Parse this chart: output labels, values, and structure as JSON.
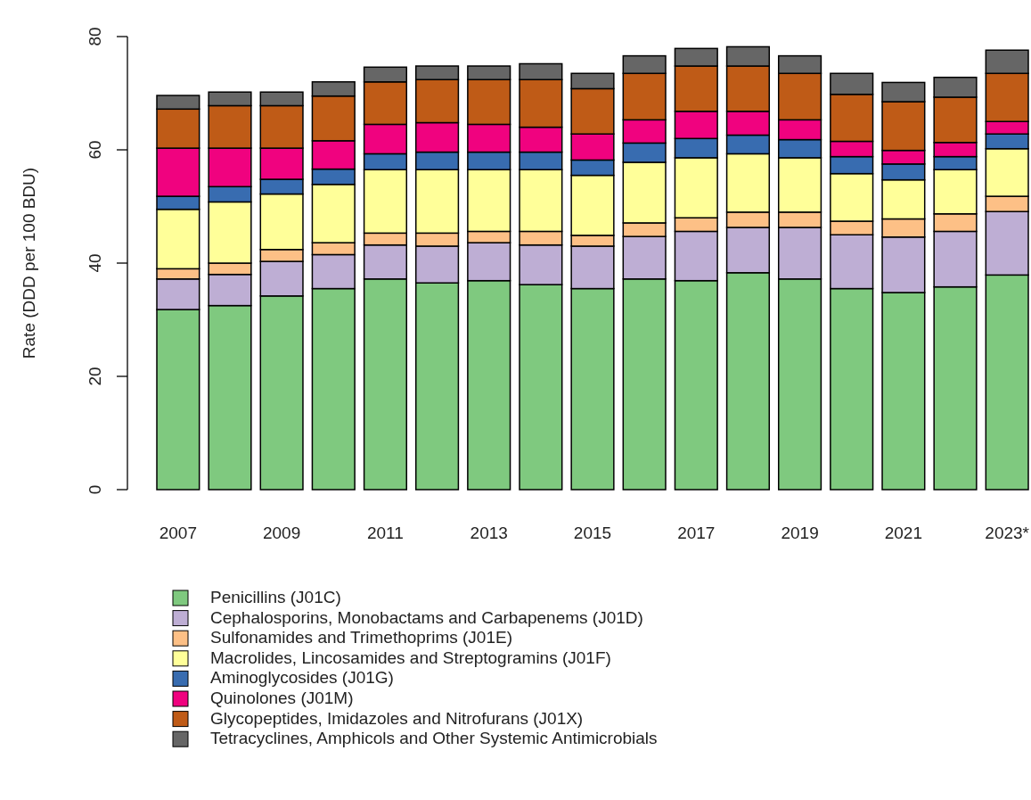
{
  "chart_data": {
    "type": "bar",
    "stacked": true,
    "ylabel": "Rate (DDD per 100 BDU)",
    "categories": [
      "2007",
      null,
      "2009",
      null,
      "2011",
      null,
      "2013",
      null,
      "2015",
      null,
      "2017",
      null,
      "2019",
      null,
      "2021",
      null,
      "2023*"
    ],
    "ylim": [
      0,
      80
    ],
    "yticks": [
      0,
      20,
      40,
      60,
      80
    ],
    "legend": "bottom",
    "grid": false,
    "series": [
      {
        "name": "Penicillins (J01C)",
        "color": "#7fc97f",
        "values": [
          31.8,
          32.5,
          34.2,
          35.5,
          37.2,
          36.5,
          36.9,
          36.2,
          35.5,
          37.2,
          36.9,
          38.3,
          37.2,
          35.5,
          34.8,
          35.8,
          37.9
        ]
      },
      {
        "name": "Cephalosporins, Monobactams and Carbapenems (J01D)",
        "color": "#beaed4",
        "values": [
          5.4,
          5.5,
          6.1,
          6.0,
          6.0,
          6.5,
          6.7,
          7.0,
          7.5,
          7.5,
          8.7,
          8.0,
          9.1,
          9.5,
          9.8,
          9.8,
          11.2
        ]
      },
      {
        "name": "Sulfonamides and Trimethoprims (J01E)",
        "color": "#fdc086",
        "values": [
          1.8,
          2.0,
          2.1,
          2.1,
          2.1,
          2.3,
          2.0,
          2.4,
          1.9,
          2.4,
          2.4,
          2.7,
          2.7,
          2.4,
          3.2,
          3.1,
          2.7
        ]
      },
      {
        "name": "Macrolides, Lincosamides and Streptogramins (J01F)",
        "color": "#ffff99",
        "values": [
          10.5,
          10.8,
          9.8,
          10.3,
          11.2,
          11.2,
          10.9,
          10.9,
          10.6,
          10.7,
          10.6,
          10.3,
          9.6,
          8.4,
          6.9,
          7.8,
          8.4
        ]
      },
      {
        "name": "Aminoglycosides (J01G)",
        "color": "#386cb0",
        "values": [
          2.3,
          2.7,
          2.6,
          2.7,
          2.8,
          3.1,
          3.1,
          3.1,
          2.7,
          3.4,
          3.4,
          3.3,
          3.2,
          3.0,
          2.8,
          2.3,
          2.6
        ]
      },
      {
        "name": "Quinolones (J01M)",
        "color": "#f0027f",
        "values": [
          8.5,
          6.8,
          5.5,
          5.0,
          5.2,
          5.2,
          4.9,
          4.4,
          4.6,
          4.1,
          4.8,
          4.2,
          3.5,
          2.7,
          2.4,
          2.5,
          2.2
        ]
      },
      {
        "name": "Glycopeptides, Imidazoles and Nitrofurans (J01X)",
        "color": "#bf5b17",
        "values": [
          6.9,
          7.5,
          7.5,
          7.9,
          7.5,
          7.6,
          7.9,
          8.4,
          8.0,
          8.2,
          8.0,
          8.0,
          8.2,
          8.3,
          8.6,
          8.0,
          8.5
        ]
      },
      {
        "name": "Tetracyclines, Amphicols and Other Systemic Antimicrobials",
        "color": "#666666",
        "values": [
          2.4,
          2.4,
          2.4,
          2.5,
          2.6,
          2.4,
          2.4,
          2.8,
          2.7,
          3.1,
          3.1,
          3.4,
          3.1,
          3.7,
          3.4,
          3.5,
          4.1
        ]
      }
    ]
  }
}
